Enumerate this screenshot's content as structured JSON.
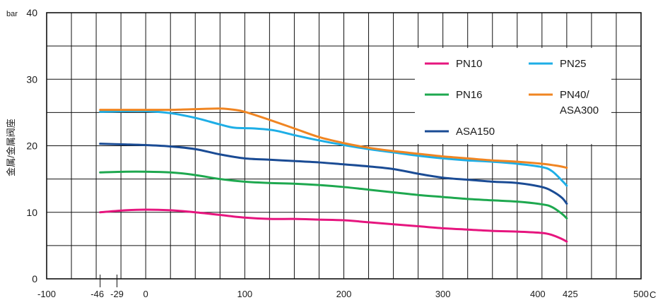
{
  "chart_data": {
    "type": "line",
    "ylabel": "金属/金属阀座",
    "y_unit": "bar",
    "x_unit": "C",
    "xlim": [
      -100,
      500
    ],
    "ylim": [
      0,
      40
    ],
    "x_ticks": [
      -100,
      -46,
      -29,
      0,
      100,
      200,
      300,
      400,
      425,
      500
    ],
    "y_ticks": [
      0,
      10,
      20,
      30,
      40
    ],
    "grid": true,
    "legend_position": "top-right",
    "series": [
      {
        "name": "PN10",
        "color": "#e6157e",
        "points": [
          [
            -46,
            10.0
          ],
          [
            -20,
            10.3
          ],
          [
            0,
            10.4
          ],
          [
            25,
            10.3
          ],
          [
            50,
            10.0
          ],
          [
            75,
            9.6
          ],
          [
            100,
            9.2
          ],
          [
            125,
            9.0
          ],
          [
            150,
            9.0
          ],
          [
            175,
            8.9
          ],
          [
            200,
            8.8
          ],
          [
            225,
            8.5
          ],
          [
            250,
            8.2
          ],
          [
            275,
            7.9
          ],
          [
            300,
            7.6
          ],
          [
            325,
            7.4
          ],
          [
            350,
            7.2
          ],
          [
            375,
            7.1
          ],
          [
            400,
            6.9
          ],
          [
            410,
            6.6
          ],
          [
            420,
            6.0
          ],
          [
            425,
            5.6
          ]
        ]
      },
      {
        "name": "PN16",
        "color": "#1ea84f",
        "points": [
          [
            -46,
            16.0
          ],
          [
            -20,
            16.1
          ],
          [
            0,
            16.1
          ],
          [
            25,
            16.0
          ],
          [
            50,
            15.6
          ],
          [
            75,
            15.0
          ],
          [
            100,
            14.6
          ],
          [
            125,
            14.4
          ],
          [
            150,
            14.3
          ],
          [
            175,
            14.1
          ],
          [
            200,
            13.8
          ],
          [
            225,
            13.4
          ],
          [
            250,
            13.0
          ],
          [
            275,
            12.6
          ],
          [
            300,
            12.3
          ],
          [
            325,
            12.0
          ],
          [
            350,
            11.8
          ],
          [
            375,
            11.6
          ],
          [
            400,
            11.2
          ],
          [
            410,
            10.8
          ],
          [
            420,
            9.8
          ],
          [
            425,
            9.1
          ]
        ]
      },
      {
        "name": "PN25",
        "color": "#1eaee6",
        "points": [
          [
            -46,
            25.1
          ],
          [
            -20,
            25.2
          ],
          [
            0,
            25.2
          ],
          [
            25,
            24.9
          ],
          [
            50,
            24.2
          ],
          [
            75,
            23.2
          ],
          [
            90,
            22.7
          ],
          [
            110,
            22.6
          ],
          [
            130,
            22.3
          ],
          [
            150,
            21.6
          ],
          [
            175,
            20.8
          ],
          [
            200,
            20.1
          ],
          [
            225,
            19.5
          ],
          [
            250,
            19.0
          ],
          [
            275,
            18.5
          ],
          [
            300,
            18.1
          ],
          [
            325,
            17.8
          ],
          [
            350,
            17.6
          ],
          [
            375,
            17.3
          ],
          [
            400,
            16.8
          ],
          [
            410,
            16.2
          ],
          [
            420,
            14.8
          ],
          [
            425,
            14.0
          ]
        ]
      },
      {
        "name": "PN40/\nASA300",
        "color": "#f08522",
        "points": [
          [
            -46,
            25.4
          ],
          [
            -20,
            25.4
          ],
          [
            0,
            25.4
          ],
          [
            25,
            25.4
          ],
          [
            50,
            25.5
          ],
          [
            75,
            25.6
          ],
          [
            90,
            25.4
          ],
          [
            100,
            25.1
          ],
          [
            125,
            23.9
          ],
          [
            150,
            22.6
          ],
          [
            175,
            21.3
          ],
          [
            200,
            20.4
          ],
          [
            225,
            19.7
          ],
          [
            250,
            19.2
          ],
          [
            275,
            18.8
          ],
          [
            300,
            18.4
          ],
          [
            325,
            18.1
          ],
          [
            350,
            17.8
          ],
          [
            375,
            17.6
          ],
          [
            400,
            17.3
          ],
          [
            415,
            17.0
          ],
          [
            425,
            16.7
          ]
        ]
      },
      {
        "name": "ASA150",
        "color": "#1a4b94",
        "points": [
          [
            -46,
            20.3
          ],
          [
            -20,
            20.2
          ],
          [
            0,
            20.1
          ],
          [
            25,
            19.9
          ],
          [
            50,
            19.5
          ],
          [
            75,
            18.7
          ],
          [
            100,
            18.1
          ],
          [
            125,
            17.9
          ],
          [
            150,
            17.7
          ],
          [
            175,
            17.5
          ],
          [
            200,
            17.2
          ],
          [
            225,
            16.9
          ],
          [
            250,
            16.5
          ],
          [
            275,
            15.8
          ],
          [
            300,
            15.2
          ],
          [
            325,
            14.9
          ],
          [
            350,
            14.6
          ],
          [
            375,
            14.4
          ],
          [
            400,
            13.8
          ],
          [
            410,
            13.2
          ],
          [
            420,
            12.2
          ],
          [
            425,
            11.3
          ]
        ]
      }
    ]
  }
}
